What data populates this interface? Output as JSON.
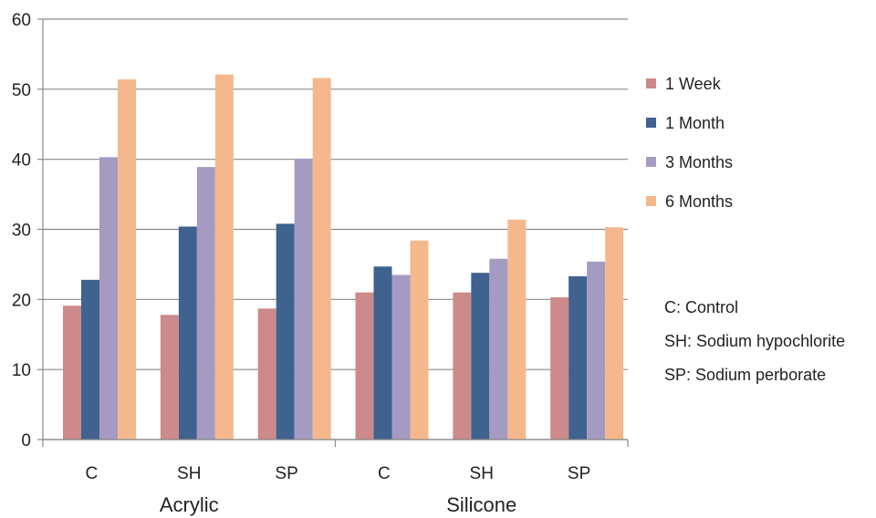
{
  "chart_data": {
    "type": "bar",
    "categories": [
      "C",
      "SH",
      "SP",
      "C",
      "SH",
      "SP"
    ],
    "groups": [
      {
        "label": "Acrylic",
        "category_indices": [
          0,
          1,
          2
        ]
      },
      {
        "label": "Silicone",
        "category_indices": [
          3,
          4,
          5
        ]
      }
    ],
    "series": [
      {
        "name": "1 Week",
        "color": "#cd8a8a",
        "values": [
          19.1,
          17.8,
          18.7,
          21.0,
          21.0,
          20.3
        ]
      },
      {
        "name": "1 Month",
        "color": "#3f628f",
        "values": [
          22.8,
          30.4,
          30.8,
          24.7,
          23.8,
          23.3
        ]
      },
      {
        "name": "3 Months",
        "color": "#a59ac2",
        "values": [
          40.3,
          38.9,
          40.1,
          23.5,
          25.8,
          25.4
        ]
      },
      {
        "name": "6 Months",
        "color": "#f5b88c",
        "values": [
          51.4,
          52.1,
          51.6,
          28.4,
          31.4,
          30.3
        ]
      }
    ],
    "yticks": [
      "0",
      "10",
      "20",
      "30",
      "40",
      "50",
      "60"
    ],
    "ylim": [
      0,
      60
    ],
    "grid": true,
    "legend_position": "right"
  },
  "notes": [
    "C: Control",
    "SH: Sodium hypochlorite",
    "SP: Sodium perborate"
  ]
}
